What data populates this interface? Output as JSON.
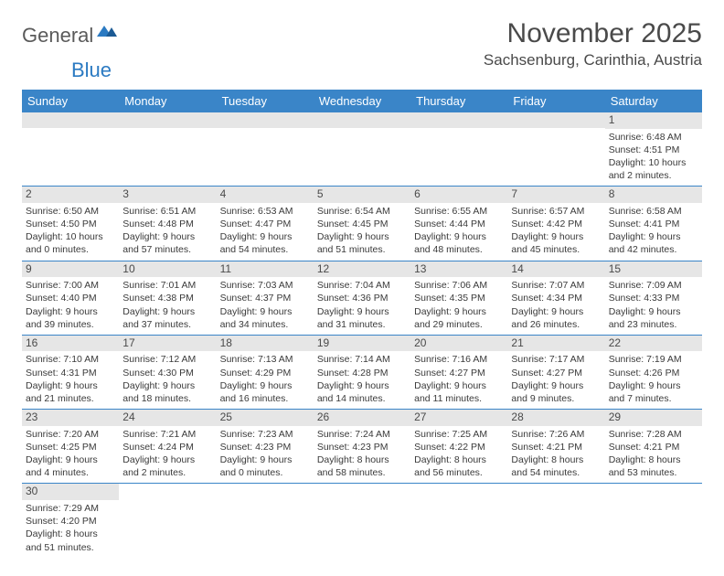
{
  "logo": {
    "text1": "General",
    "text2": "Blue"
  },
  "title": "November 2025",
  "location": "Sachsenburg, Carinthia, Austria",
  "colors": {
    "headerBar": "#3a85c8",
    "dayBar": "#e6e6e6",
    "text": "#3a3a3a",
    "logoGray": "#5a5a5a",
    "logoBlue": "#2b7ac2"
  },
  "weekdays": [
    "Sunday",
    "Monday",
    "Tuesday",
    "Wednesday",
    "Thursday",
    "Friday",
    "Saturday"
  ],
  "weeks": [
    [
      {
        "n": "",
        "sunrise": "",
        "sunset": "",
        "daylight": ""
      },
      {
        "n": "",
        "sunrise": "",
        "sunset": "",
        "daylight": ""
      },
      {
        "n": "",
        "sunrise": "",
        "sunset": "",
        "daylight": ""
      },
      {
        "n": "",
        "sunrise": "",
        "sunset": "",
        "daylight": ""
      },
      {
        "n": "",
        "sunrise": "",
        "sunset": "",
        "daylight": ""
      },
      {
        "n": "",
        "sunrise": "",
        "sunset": "",
        "daylight": ""
      },
      {
        "n": "1",
        "sunrise": "Sunrise: 6:48 AM",
        "sunset": "Sunset: 4:51 PM",
        "daylight": "Daylight: 10 hours and 2 minutes."
      }
    ],
    [
      {
        "n": "2",
        "sunrise": "Sunrise: 6:50 AM",
        "sunset": "Sunset: 4:50 PM",
        "daylight": "Daylight: 10 hours and 0 minutes."
      },
      {
        "n": "3",
        "sunrise": "Sunrise: 6:51 AM",
        "sunset": "Sunset: 4:48 PM",
        "daylight": "Daylight: 9 hours and 57 minutes."
      },
      {
        "n": "4",
        "sunrise": "Sunrise: 6:53 AM",
        "sunset": "Sunset: 4:47 PM",
        "daylight": "Daylight: 9 hours and 54 minutes."
      },
      {
        "n": "5",
        "sunrise": "Sunrise: 6:54 AM",
        "sunset": "Sunset: 4:45 PM",
        "daylight": "Daylight: 9 hours and 51 minutes."
      },
      {
        "n": "6",
        "sunrise": "Sunrise: 6:55 AM",
        "sunset": "Sunset: 4:44 PM",
        "daylight": "Daylight: 9 hours and 48 minutes."
      },
      {
        "n": "7",
        "sunrise": "Sunrise: 6:57 AM",
        "sunset": "Sunset: 4:42 PM",
        "daylight": "Daylight: 9 hours and 45 minutes."
      },
      {
        "n": "8",
        "sunrise": "Sunrise: 6:58 AM",
        "sunset": "Sunset: 4:41 PM",
        "daylight": "Daylight: 9 hours and 42 minutes."
      }
    ],
    [
      {
        "n": "9",
        "sunrise": "Sunrise: 7:00 AM",
        "sunset": "Sunset: 4:40 PM",
        "daylight": "Daylight: 9 hours and 39 minutes."
      },
      {
        "n": "10",
        "sunrise": "Sunrise: 7:01 AM",
        "sunset": "Sunset: 4:38 PM",
        "daylight": "Daylight: 9 hours and 37 minutes."
      },
      {
        "n": "11",
        "sunrise": "Sunrise: 7:03 AM",
        "sunset": "Sunset: 4:37 PM",
        "daylight": "Daylight: 9 hours and 34 minutes."
      },
      {
        "n": "12",
        "sunrise": "Sunrise: 7:04 AM",
        "sunset": "Sunset: 4:36 PM",
        "daylight": "Daylight: 9 hours and 31 minutes."
      },
      {
        "n": "13",
        "sunrise": "Sunrise: 7:06 AM",
        "sunset": "Sunset: 4:35 PM",
        "daylight": "Daylight: 9 hours and 29 minutes."
      },
      {
        "n": "14",
        "sunrise": "Sunrise: 7:07 AM",
        "sunset": "Sunset: 4:34 PM",
        "daylight": "Daylight: 9 hours and 26 minutes."
      },
      {
        "n": "15",
        "sunrise": "Sunrise: 7:09 AM",
        "sunset": "Sunset: 4:33 PM",
        "daylight": "Daylight: 9 hours and 23 minutes."
      }
    ],
    [
      {
        "n": "16",
        "sunrise": "Sunrise: 7:10 AM",
        "sunset": "Sunset: 4:31 PM",
        "daylight": "Daylight: 9 hours and 21 minutes."
      },
      {
        "n": "17",
        "sunrise": "Sunrise: 7:12 AM",
        "sunset": "Sunset: 4:30 PM",
        "daylight": "Daylight: 9 hours and 18 minutes."
      },
      {
        "n": "18",
        "sunrise": "Sunrise: 7:13 AM",
        "sunset": "Sunset: 4:29 PM",
        "daylight": "Daylight: 9 hours and 16 minutes."
      },
      {
        "n": "19",
        "sunrise": "Sunrise: 7:14 AM",
        "sunset": "Sunset: 4:28 PM",
        "daylight": "Daylight: 9 hours and 14 minutes."
      },
      {
        "n": "20",
        "sunrise": "Sunrise: 7:16 AM",
        "sunset": "Sunset: 4:27 PM",
        "daylight": "Daylight: 9 hours and 11 minutes."
      },
      {
        "n": "21",
        "sunrise": "Sunrise: 7:17 AM",
        "sunset": "Sunset: 4:27 PM",
        "daylight": "Daylight: 9 hours and 9 minutes."
      },
      {
        "n": "22",
        "sunrise": "Sunrise: 7:19 AM",
        "sunset": "Sunset: 4:26 PM",
        "daylight": "Daylight: 9 hours and 7 minutes."
      }
    ],
    [
      {
        "n": "23",
        "sunrise": "Sunrise: 7:20 AM",
        "sunset": "Sunset: 4:25 PM",
        "daylight": "Daylight: 9 hours and 4 minutes."
      },
      {
        "n": "24",
        "sunrise": "Sunrise: 7:21 AM",
        "sunset": "Sunset: 4:24 PM",
        "daylight": "Daylight: 9 hours and 2 minutes."
      },
      {
        "n": "25",
        "sunrise": "Sunrise: 7:23 AM",
        "sunset": "Sunset: 4:23 PM",
        "daylight": "Daylight: 9 hours and 0 minutes."
      },
      {
        "n": "26",
        "sunrise": "Sunrise: 7:24 AM",
        "sunset": "Sunset: 4:23 PM",
        "daylight": "Daylight: 8 hours and 58 minutes."
      },
      {
        "n": "27",
        "sunrise": "Sunrise: 7:25 AM",
        "sunset": "Sunset: 4:22 PM",
        "daylight": "Daylight: 8 hours and 56 minutes."
      },
      {
        "n": "28",
        "sunrise": "Sunrise: 7:26 AM",
        "sunset": "Sunset: 4:21 PM",
        "daylight": "Daylight: 8 hours and 54 minutes."
      },
      {
        "n": "29",
        "sunrise": "Sunrise: 7:28 AM",
        "sunset": "Sunset: 4:21 PM",
        "daylight": "Daylight: 8 hours and 53 minutes."
      }
    ],
    [
      {
        "n": "30",
        "sunrise": "Sunrise: 7:29 AM",
        "sunset": "Sunset: 4:20 PM",
        "daylight": "Daylight: 8 hours and 51 minutes."
      },
      {
        "n": "",
        "sunrise": "",
        "sunset": "",
        "daylight": ""
      },
      {
        "n": "",
        "sunrise": "",
        "sunset": "",
        "daylight": ""
      },
      {
        "n": "",
        "sunrise": "",
        "sunset": "",
        "daylight": ""
      },
      {
        "n": "",
        "sunrise": "",
        "sunset": "",
        "daylight": ""
      },
      {
        "n": "",
        "sunrise": "",
        "sunset": "",
        "daylight": ""
      },
      {
        "n": "",
        "sunrise": "",
        "sunset": "",
        "daylight": ""
      }
    ]
  ]
}
